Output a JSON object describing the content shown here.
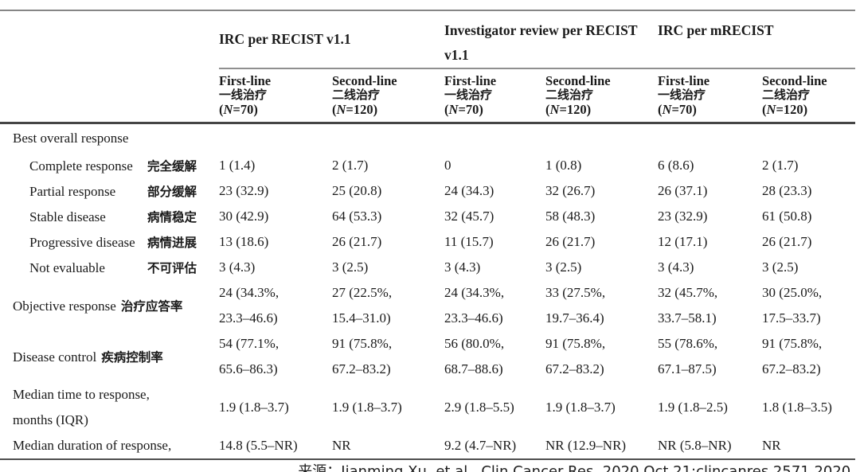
{
  "table": {
    "groups": [
      {
        "title": "IRC per RECIST v1.1"
      },
      {
        "title": "Investigator review per RECIST",
        "title2": "v1.1"
      },
      {
        "title": "IRC per mRECIST"
      }
    ],
    "subheaders": [
      {
        "treatment": "First-line",
        "treatment_zh": "一线治疗",
        "n_pre": "(",
        "n_italic": "N",
        "n_post": "=70)"
      },
      {
        "treatment": "Second-line",
        "treatment_zh": "二线治疗",
        "n_pre": "(",
        "n_italic": "N",
        "n_post": "=120)"
      },
      {
        "treatment": "First-line",
        "treatment_zh": "一线治疗",
        "n_pre": "(",
        "n_italic": "N",
        "n_post": "=70)"
      },
      {
        "treatment": "Second-line",
        "treatment_zh": "二线治疗",
        "n_pre": "(",
        "n_italic": "N",
        "n_post": "=120)"
      },
      {
        "treatment": "First-line",
        "treatment_zh": "一线治疗",
        "n_pre": "(",
        "n_italic": "N",
        "n_post": "=70)"
      },
      {
        "treatment": "Second-line",
        "treatment_zh": "二线治疗",
        "n_pre": "(",
        "n_italic": "N",
        "n_post": "=120)"
      }
    ],
    "rows": [
      {
        "label": "Best overall response"
      },
      {
        "label": "Complete response",
        "label_zh": "完全缓解",
        "values": [
          "1 (1.4)",
          "2 (1.7)",
          "0",
          "1 (0.8)",
          "6 (8.6)",
          "2 (1.7)"
        ]
      },
      {
        "label": "Partial response",
        "label_zh": "部分缓解",
        "values": [
          "23 (32.9)",
          "25 (20.8)",
          "24 (34.3)",
          "32 (26.7)",
          "26 (37.1)",
          "28 (23.3)"
        ]
      },
      {
        "label": "Stable disease",
        "label_zh": "病情稳定",
        "values": [
          "30 (42.9)",
          "64 (53.3)",
          "32 (45.7)",
          "58 (48.3)",
          "23 (32.9)",
          "61 (50.8)"
        ]
      },
      {
        "label": "Progressive disease",
        "label_zh": "病情进展",
        "values": [
          "13 (18.6)",
          "26 (21.7)",
          "11 (15.7)",
          "26 (21.7)",
          "12 (17.1)",
          "26 (21.7)"
        ]
      },
      {
        "label": "Not evaluable",
        "label_zh": "不可评估",
        "values": [
          "3 (4.3)",
          "3 (2.5)",
          "3 (4.3)",
          "3 (2.5)",
          "3 (4.3)",
          "3 (2.5)"
        ]
      },
      {
        "label": "Objective response",
        "label_zh": "治疗应答率",
        "values": [
          "24 (34.3%,\n23.3–46.6)",
          "27 (22.5%,\n15.4–31.0)",
          "24 (34.3%,\n23.3–46.6)",
          "33 (27.5%,\n19.7–36.4)",
          "32 (45.7%,\n33.7–58.1)",
          "30 (25.0%,\n17.5–33.7)"
        ]
      },
      {
        "label": "Disease control",
        "label_zh": "疾病控制率",
        "values": [
          "54 (77.1%,\n65.6–86.3)",
          "91 (75.8%,\n67.2–83.2)",
          "56 (80.0%,\n68.7–88.6)",
          "91 (75.8%,\n67.2–83.2)",
          "55 (78.6%,\n67.1–87.5)",
          "91 (75.8%,\n67.2–83.2)"
        ]
      },
      {
        "label": "Median time to response,\nmonths (IQR)",
        "values": [
          "1.9 (1.8–3.7)",
          "1.9 (1.8–3.7)",
          "2.9 (1.8–5.5)",
          "1.9 (1.8–3.7)",
          "1.9 (1.8–2.5)",
          "1.8 (1.8–3.5)"
        ]
      },
      {
        "label": "Median duration of response,",
        "values": [
          "14.8 (5.5–NR)",
          "NR",
          "9.2 (4.7–NR)",
          "NR (12.9–NR)",
          "NR (5.8–NR)",
          "NR"
        ]
      }
    ]
  },
  "footer": {
    "source": "来源：Jianming Xu, et al., Clin Cancer Res. 2020 Oct 21;clincanres.2571.2020."
  }
}
